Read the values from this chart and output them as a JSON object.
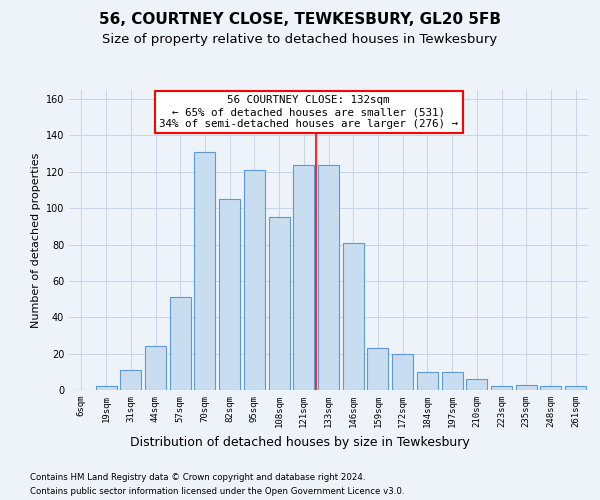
{
  "title1": "56, COURTNEY CLOSE, TEWKESBURY, GL20 5FB",
  "title2": "Size of property relative to detached houses in Tewkesbury",
  "xlabel": "Distribution of detached houses by size in Tewkesbury",
  "ylabel": "Number of detached properties",
  "footer1": "Contains HM Land Registry data © Crown copyright and database right 2024.",
  "footer2": "Contains public sector information licensed under the Open Government Licence v3.0.",
  "annotation_line1": "56 COURTNEY CLOSE: 132sqm",
  "annotation_line2": "← 65% of detached houses are smaller (531)",
  "annotation_line3": "34% of semi-detached houses are larger (276) →",
  "bin_labels": [
    "6sqm",
    "19sqm",
    "31sqm",
    "44sqm",
    "57sqm",
    "70sqm",
    "82sqm",
    "95sqm",
    "108sqm",
    "121sqm",
    "133sqm",
    "146sqm",
    "159sqm",
    "172sqm",
    "184sqm",
    "197sqm",
    "210sqm",
    "223sqm",
    "235sqm",
    "248sqm",
    "261sqm"
  ],
  "bar_heights": [
    0,
    2,
    11,
    24,
    51,
    131,
    105,
    121,
    95,
    124,
    124,
    81,
    23,
    20,
    10,
    10,
    6,
    2,
    3,
    2,
    2
  ],
  "bar_color": "#c9ddf0",
  "bar_edge_color": "#5b9bd5",
  "bar_width": 0.85,
  "red_line_index": 10,
  "ylim": [
    0,
    165
  ],
  "yticks": [
    0,
    20,
    40,
    60,
    80,
    100,
    120,
    140,
    160
  ],
  "grid_color": "#c8d4e8",
  "background_color": "#eef2f9",
  "title1_fontsize": 11,
  "title2_fontsize": 9.5,
  "ylabel_fontsize": 8,
  "xlabel_fontsize": 9,
  "annotation_fontsize": 7.8,
  "tick_fontsize": 6.5
}
